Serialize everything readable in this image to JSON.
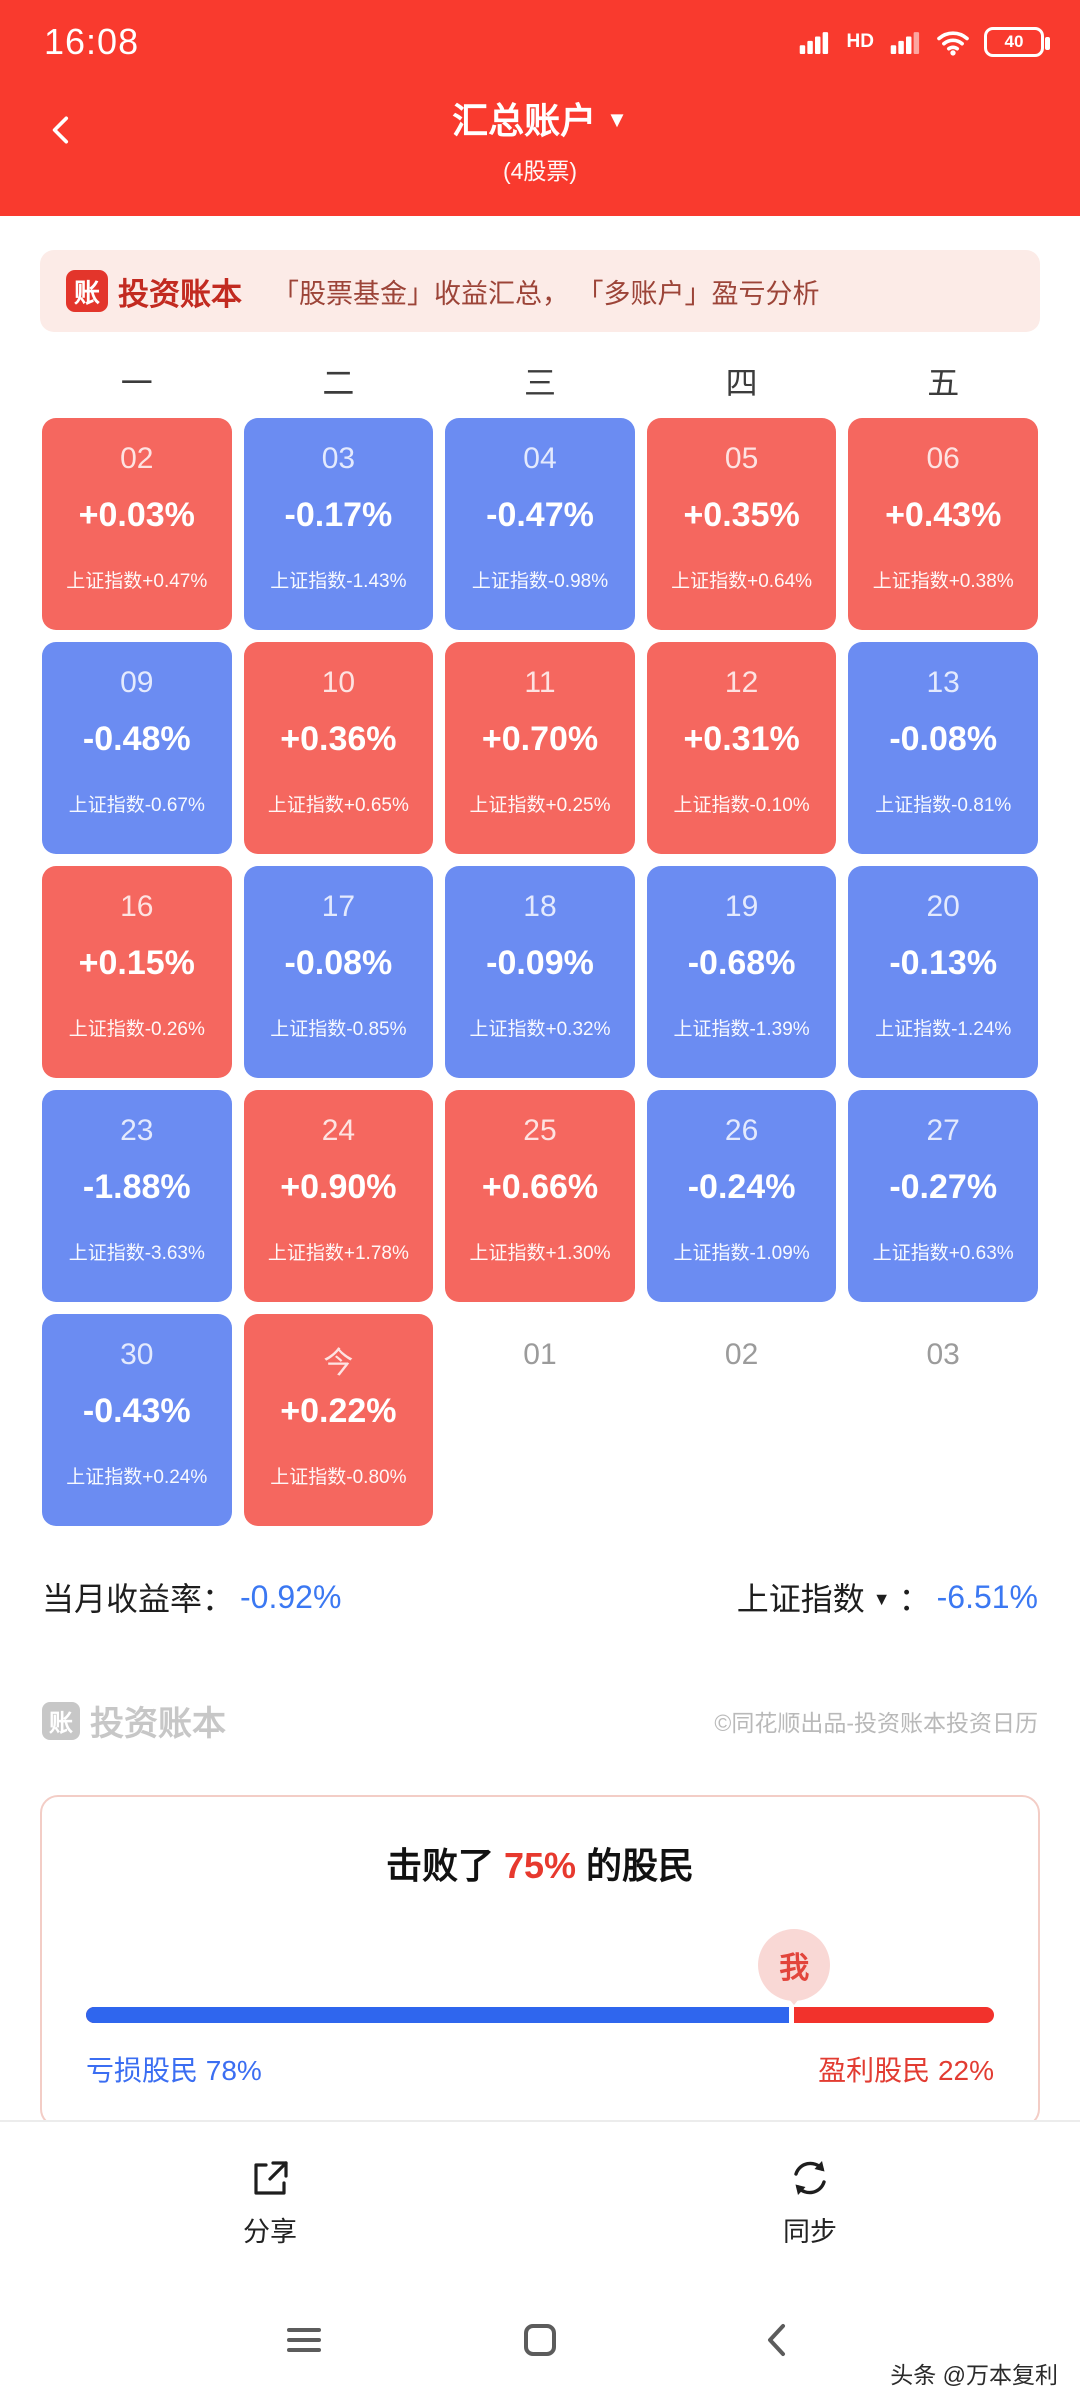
{
  "status_bar": {
    "time": "16:08",
    "hd": "HD",
    "battery": "40"
  },
  "header": {
    "title": "汇总账户",
    "subtitle": "(4股票)"
  },
  "banner": {
    "logo_glyph": "账",
    "logo_text": "投资账本",
    "slogan": "「股票基金」收益汇总， 「多账户」盈亏分析"
  },
  "calendar": {
    "weekdays": [
      "一",
      "二",
      "三",
      "四",
      "五"
    ],
    "cells": [
      {
        "day": "02",
        "pct": "+0.03%",
        "idx": "上证指数+0.47%",
        "type": "up"
      },
      {
        "day": "03",
        "pct": "-0.17%",
        "idx": "上证指数-1.43%",
        "type": "down"
      },
      {
        "day": "04",
        "pct": "-0.47%",
        "idx": "上证指数-0.98%",
        "type": "down"
      },
      {
        "day": "05",
        "pct": "+0.35%",
        "idx": "上证指数+0.64%",
        "type": "up"
      },
      {
        "day": "06",
        "pct": "+0.43%",
        "idx": "上证指数+0.38%",
        "type": "up"
      },
      {
        "day": "09",
        "pct": "-0.48%",
        "idx": "上证指数-0.67%",
        "type": "down"
      },
      {
        "day": "10",
        "pct": "+0.36%",
        "idx": "上证指数+0.65%",
        "type": "up"
      },
      {
        "day": "11",
        "pct": "+0.70%",
        "idx": "上证指数+0.25%",
        "type": "up"
      },
      {
        "day": "12",
        "pct": "+0.31%",
        "idx": "上证指数-0.10%",
        "type": "up"
      },
      {
        "day": "13",
        "pct": "-0.08%",
        "idx": "上证指数-0.81%",
        "type": "down"
      },
      {
        "day": "16",
        "pct": "+0.15%",
        "idx": "上证指数-0.26%",
        "type": "up"
      },
      {
        "day": "17",
        "pct": "-0.08%",
        "idx": "上证指数-0.85%",
        "type": "down"
      },
      {
        "day": "18",
        "pct": "-0.09%",
        "idx": "上证指数+0.32%",
        "type": "down"
      },
      {
        "day": "19",
        "pct": "-0.68%",
        "idx": "上证指数-1.39%",
        "type": "down"
      },
      {
        "day": "20",
        "pct": "-0.13%",
        "idx": "上证指数-1.24%",
        "type": "down"
      },
      {
        "day": "23",
        "pct": "-1.88%",
        "idx": "上证指数-3.63%",
        "type": "down"
      },
      {
        "day": "24",
        "pct": "+0.90%",
        "idx": "上证指数+1.78%",
        "type": "up"
      },
      {
        "day": "25",
        "pct": "+0.66%",
        "idx": "上证指数+1.30%",
        "type": "up"
      },
      {
        "day": "26",
        "pct": "-0.24%",
        "idx": "上证指数-1.09%",
        "type": "down"
      },
      {
        "day": "27",
        "pct": "-0.27%",
        "idx": "上证指数+0.63%",
        "type": "down"
      },
      {
        "day": "30",
        "pct": "-0.43%",
        "idx": "上证指数+0.24%",
        "type": "down"
      },
      {
        "day": "今",
        "pct": "+0.22%",
        "idx": "上证指数-0.80%",
        "type": "up"
      },
      {
        "day": "01",
        "pct": "",
        "idx": "",
        "type": "next"
      },
      {
        "day": "02",
        "pct": "",
        "idx": "",
        "type": "next"
      },
      {
        "day": "03",
        "pct": "",
        "idx": "",
        "type": "next"
      }
    ]
  },
  "summary": {
    "month_label": "当月收益率：",
    "month_value": "-0.92%",
    "index_label": "上证指数",
    "index_colon": "：",
    "index_value": "-6.51%"
  },
  "watermark": {
    "logo_glyph": "账",
    "logo_text": "投资账本",
    "credit": "©同花顺出品-投资账本投资日历"
  },
  "beat_card": {
    "title_prefix": "击败了 ",
    "title_pct": "75%",
    "title_suffix": " 的股民",
    "me_label": "我",
    "loss_label": "亏损股民 78%",
    "win_label": "盈利股民 22%",
    "loss_pct": 78,
    "win_pct": 22
  },
  "actions": {
    "share_label": "分享",
    "sync_label": "同步"
  },
  "footer_watermark": {
    "text": "头条 @万本复利"
  },
  "icons": {
    "back": "chevron-left",
    "title_dropdown": "caret-down",
    "signal": "signal-bars",
    "wifi": "wifi-arcs",
    "battery": "battery-pill-40",
    "share": "box-with-arrow",
    "sync": "circular-arrows",
    "nav_menu": "hamburger-lines",
    "nav_recent": "rounded-square",
    "nav_back": "chevron-left"
  },
  "colors": {
    "app_red": "#f93a2e",
    "up_cell": "#f5675f",
    "down_cell": "#6b8cf2",
    "value_blue": "#3b78f2",
    "bar_blue": "#2f66ee",
    "bar_red": "#f2322c",
    "banner_bg": "#fcebe7"
  }
}
